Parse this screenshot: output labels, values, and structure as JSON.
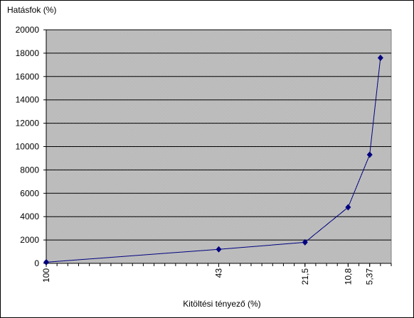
{
  "chart_data": {
    "type": "line",
    "y_axis_label": "Hatásfok (%)",
    "x_axis_label": "Kitöltési tényező (%)",
    "x": [
      0,
      16,
      24,
      28,
      30,
      31
    ],
    "xlim": [
      0,
      32
    ],
    "xticks": [
      {
        "value": 0,
        "label": "100"
      },
      {
        "value": 16,
        "label": "43"
      },
      {
        "value": 24,
        "label": "21,5"
      },
      {
        "value": 28,
        "label": "10,8"
      },
      {
        "value": 30,
        "label": "5,37"
      }
    ],
    "series": [
      {
        "name": "Hatásfok",
        "color": "#000080",
        "values": [
          100,
          1200,
          1800,
          4800,
          9300,
          17600
        ]
      }
    ],
    "ylim": [
      0,
      20000
    ],
    "yticks": [
      0,
      2000,
      4000,
      6000,
      8000,
      10000,
      12000,
      14000,
      16000,
      18000,
      20000
    ],
    "grid": true
  }
}
